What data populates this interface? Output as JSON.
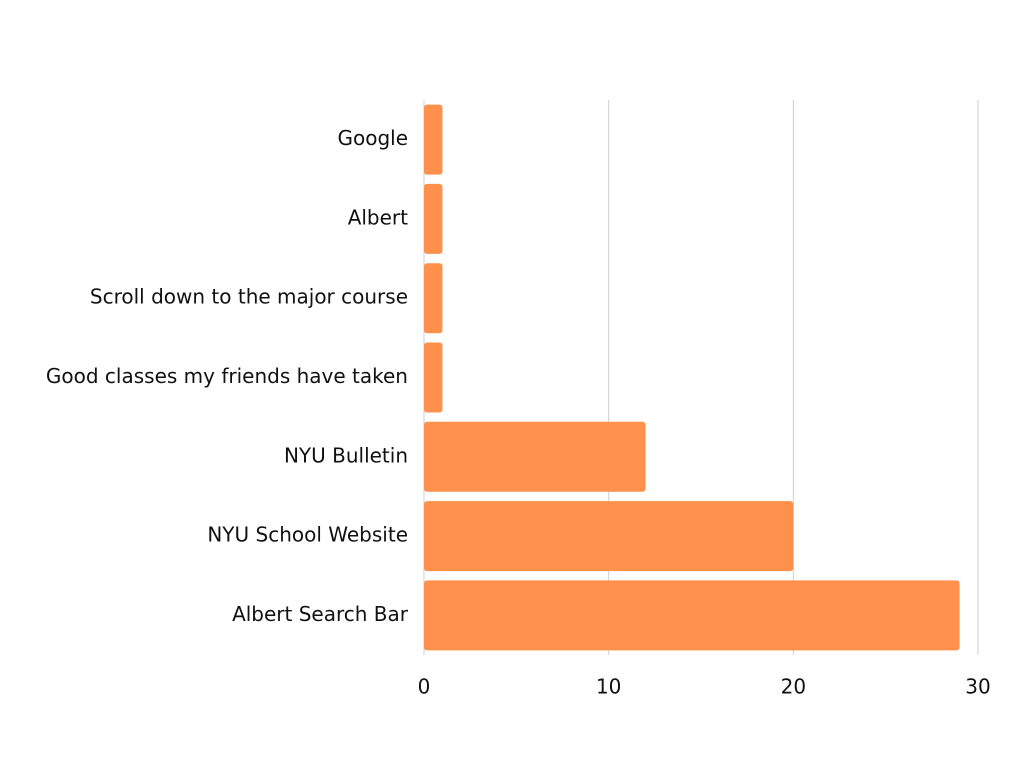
{
  "colors": {
    "bar": "#ff914d",
    "grid": "#cfcfcf",
    "text": "#111111"
  },
  "chart_data": {
    "type": "bar",
    "orientation": "horizontal",
    "title": "",
    "xlabel": "",
    "ylabel": "",
    "categories": [
      "Google",
      "Albert",
      "Scroll down to the major course",
      "Good classes my friends have taken",
      "NYU Bulletin",
      "NYU School Website",
      "Albert Search Bar"
    ],
    "values": [
      1,
      1,
      1,
      1,
      12,
      20,
      29
    ],
    "xlim": [
      0,
      30
    ],
    "xticks": [
      0,
      10,
      20,
      30
    ],
    "grid": "vertical",
    "legend": "none"
  }
}
